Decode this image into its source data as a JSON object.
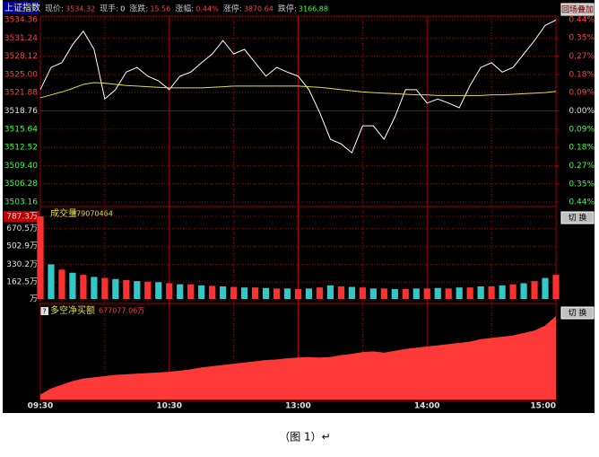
{
  "header": {
    "title": "上证指数",
    "fields": [
      {
        "label": "现价:",
        "value": "3534.32",
        "color": "#ff4040"
      },
      {
        "label": "现手:",
        "value": "0",
        "color": "#e0e0e0"
      },
      {
        "label": "涨跌:",
        "value": "15.56",
        "color": "#ff4040"
      },
      {
        "label": "涨幅:",
        "value": "0.44%",
        "color": "#ff4040"
      },
      {
        "label": "涨停:",
        "value": "3870.64",
        "color": "#ff4040"
      },
      {
        "label": "跌停:",
        "value": "3166.88",
        "color": "#40ff40"
      }
    ],
    "overlay_button": "回场叠加"
  },
  "chart_data": [
    {
      "type": "line",
      "series": [
        {
          "color": "#ffffff",
          "values": [
            3522.4,
            3526.2,
            3527.0,
            3530.1,
            3532.4,
            3529.3,
            3520.8,
            3522.4,
            3525.4,
            3526.2,
            3524.7,
            3523.9,
            3522.4,
            3524.7,
            3525.4,
            3527.0,
            3528.5,
            3530.8,
            3528.5,
            3529.3,
            3527.0,
            3524.7,
            3526.2,
            3525.4,
            3524.7,
            3522.4,
            3518.5,
            3513.9,
            3513.1,
            3511.6,
            3516.2,
            3516.2,
            3513.9,
            3517.7,
            3522.4,
            3522.4,
            3520.1,
            3520.8,
            3520.1,
            3519.3,
            3523.1,
            3526.2,
            3527.0,
            3525.4,
            3526.2,
            3528.5,
            3530.8,
            3533.4,
            3534.32
          ]
        },
        {
          "color": "#e0e040",
          "values": [
            3521.0,
            3521.5,
            3522.0,
            3522.6,
            3523.3,
            3523.6,
            3523.5,
            3523.3,
            3523.1,
            3523.0,
            3522.9,
            3522.8,
            3522.7,
            3522.7,
            3522.7,
            3522.7,
            3522.8,
            3522.9,
            3523.0,
            3523.0,
            3523.0,
            3523.0,
            3523.0,
            3523.0,
            3523.0,
            3522.9,
            3522.8,
            3522.6,
            3522.4,
            3522.2,
            3522.0,
            3521.9,
            3521.8,
            3521.7,
            3521.6,
            3521.5,
            3521.5,
            3521.4,
            3521.4,
            3521.4,
            3521.4,
            3521.4,
            3521.5,
            3521.5,
            3521.6,
            3521.7,
            3521.8,
            3521.9,
            3522.1
          ]
        }
      ],
      "ylim": [
        3503.16,
        3534.36
      ],
      "yticks": [
        3534.36,
        3531.24,
        3528.12,
        {
          "value": 3525,
          "label": "3525.00"
        },
        3521.88,
        3518.76,
        3515.64,
        3512.52,
        {
          "value": 3509.4,
          "label": "3509.40"
        },
        3506.28,
        3503.16
      ],
      "y2lim": [
        -0.443,
        0.443
      ],
      "y2ticks": [
        {
          "value": 0.443,
          "label": "0.44%"
        },
        {
          "value": 0.355,
          "label": "0.35%"
        },
        {
          "value": 0.266,
          "label": "0.27%"
        },
        {
          "value": 0.177,
          "label": "0.18%"
        },
        {
          "value": 0.089,
          "label": "0.09%"
        },
        {
          "value": 0,
          "label": "0.00%"
        },
        {
          "value": -0.089,
          "label": "0.09%"
        },
        {
          "value": -0.177,
          "label": "0.18%"
        },
        {
          "value": -0.266,
          "label": "0.27%"
        },
        {
          "value": -0.355,
          "label": "0.35%"
        },
        {
          "value": -0.443,
          "label": "0.44%"
        }
      ],
      "grid": true
    },
    {
      "type": "bar",
      "title": "成交量",
      "total_label": "379070464",
      "button": "切 换",
      "colors": [
        "#ff3030",
        "#30c8c8"
      ],
      "values": [
        787,
        330,
        280,
        250,
        230,
        210,
        200,
        190,
        180,
        170,
        165,
        160,
        150,
        140,
        140,
        130,
        125,
        120,
        115,
        110,
        110,
        105,
        100,
        100,
        95,
        100,
        110,
        130,
        120,
        115,
        110,
        100,
        100,
        95,
        95,
        100,
        100,
        105,
        100,
        110,
        110,
        120,
        120,
        130,
        140,
        150,
        170,
        200,
        230
      ],
      "ylim": [
        0,
        787.3
      ],
      "yticks": [
        {
          "value": 787.3,
          "label": "787.3万"
        },
        {
          "value": 670.5,
          "label": "670.5万"
        },
        {
          "value": 502.9,
          "label": "502.9万"
        },
        {
          "value": 330.2,
          "label": "330.2万"
        },
        {
          "value": 162.5,
          "label": "162.5万"
        },
        {
          "value": 0,
          "label": "万"
        }
      ],
      "grid": true
    },
    {
      "type": "area",
      "title": "多空净买额",
      "value_label": "677077.06万",
      "button": "切 换",
      "color": "#ff3838",
      "categories": [
        "09:30",
        null,
        null,
        null,
        null,
        null,
        null,
        null,
        null,
        null,
        null,
        null,
        "10:30",
        null,
        null,
        null,
        null,
        null,
        null,
        null,
        null,
        null,
        null,
        null,
        "13:00",
        null,
        null,
        null,
        null,
        null,
        null,
        null,
        null,
        null,
        null,
        null,
        "14:00",
        null,
        null,
        null,
        null,
        null,
        null,
        null,
        null,
        null,
        null,
        null,
        "15:00"
      ],
      "values": [
        40000,
        90000,
        120000,
        150000,
        170000,
        180000,
        190000,
        200000,
        205000,
        210000,
        215000,
        220000,
        225000,
        235000,
        245000,
        260000,
        270000,
        280000,
        290000,
        300000,
        310000,
        320000,
        325000,
        335000,
        340000,
        345000,
        340000,
        345000,
        360000,
        370000,
        385000,
        390000,
        380000,
        395000,
        410000,
        420000,
        430000,
        440000,
        450000,
        460000,
        470000,
        490000,
        500000,
        510000,
        520000,
        540000,
        560000,
        600000,
        677077.06
      ],
      "grid": true
    }
  ],
  "caption": "（图 1）↵"
}
